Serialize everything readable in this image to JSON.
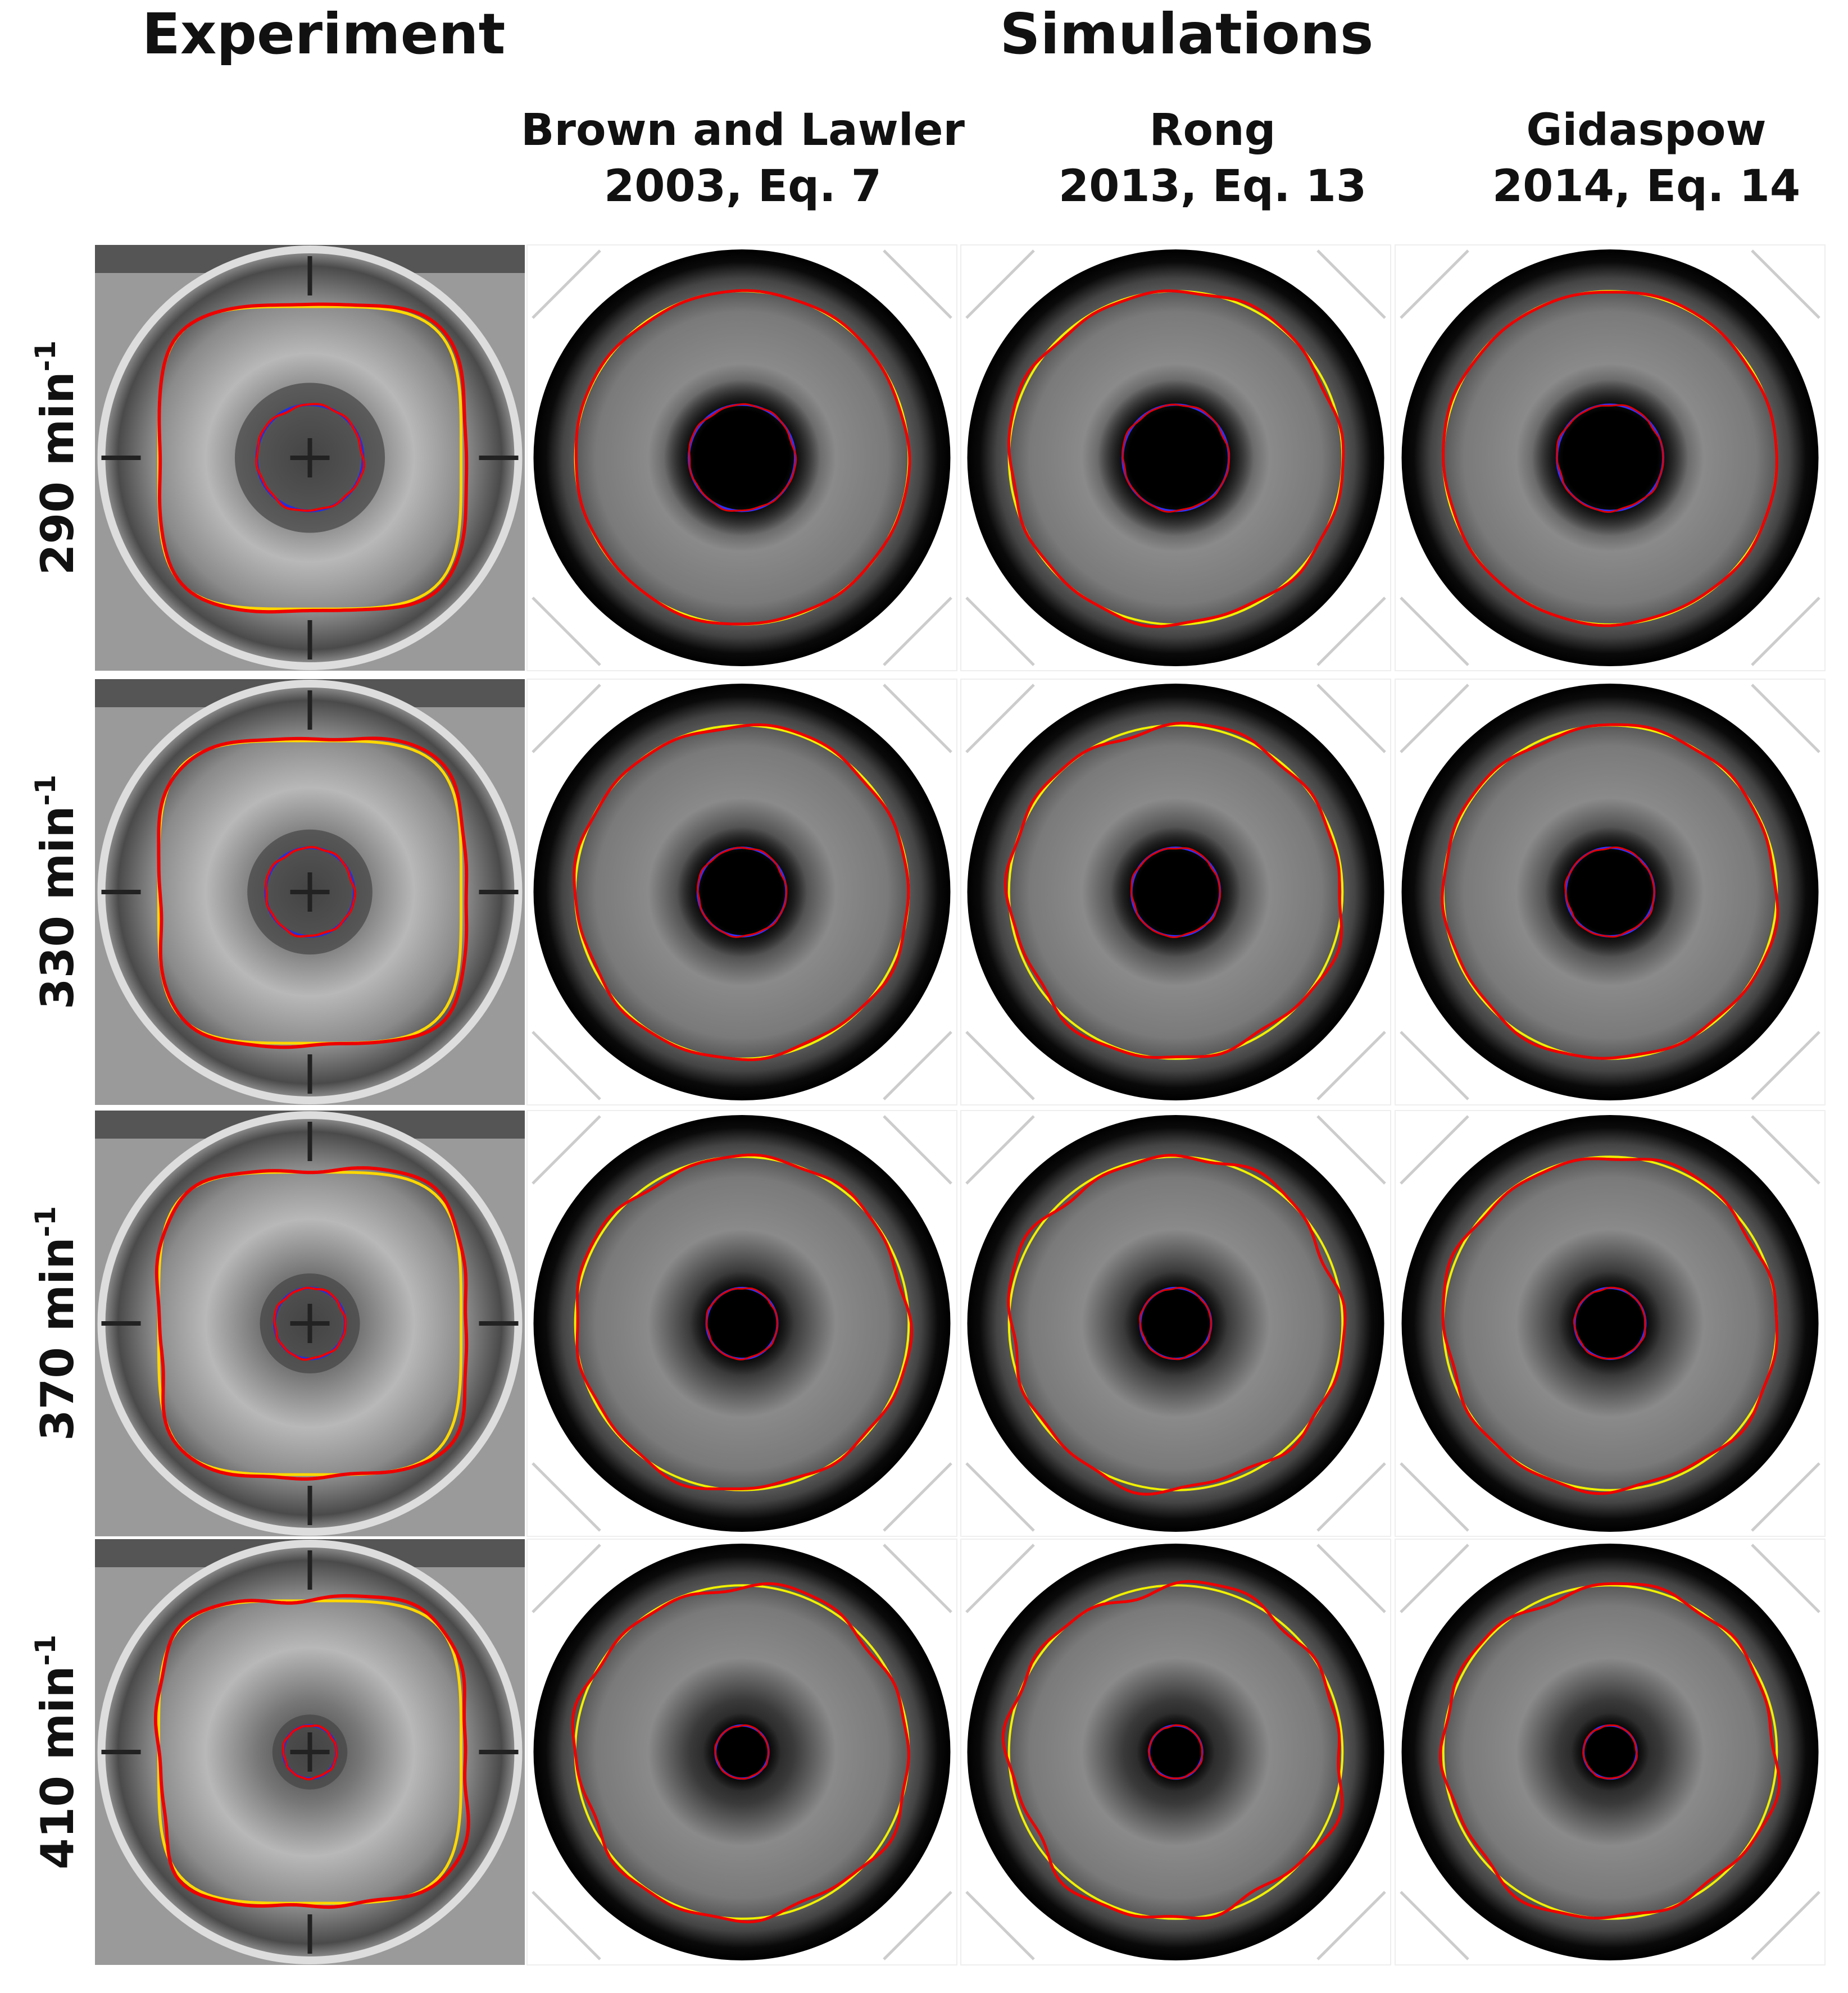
{
  "header": {
    "experiment": "Experiment",
    "simulations": "Simulations"
  },
  "columns": [
    {
      "line1": "Brown and Lawler",
      "line2": "2003, Eq. 7"
    },
    {
      "line1": "Rong",
      "line2": "2013, Eq. 13"
    },
    {
      "line1": "Gidaspow",
      "line2": "2014, Eq. 14"
    }
  ],
  "rows": [
    {
      "label": "290 min",
      "superscript": "-1"
    },
    {
      "label": "330 min",
      "superscript": "-1"
    },
    {
      "label": "370 min",
      "superscript": "-1"
    },
    {
      "label": "410 min",
      "superscript": "-1"
    }
  ]
}
